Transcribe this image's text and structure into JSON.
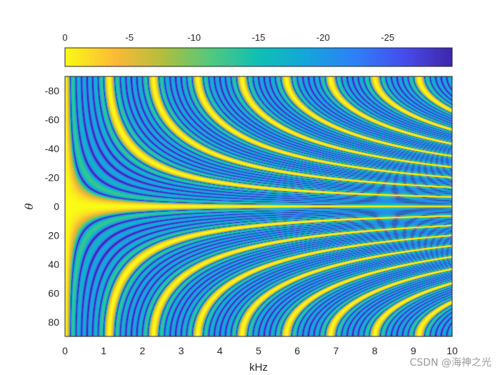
{
  "chart_data": {
    "type": "heatmap",
    "title": "",
    "xlabel": "kHz",
    "ylabel": "θ",
    "x_range": [
      0,
      10
    ],
    "y_range": [
      -90,
      90
    ],
    "y_direction": "top-to-bottom increasing",
    "x_ticks": [
      0,
      1,
      2,
      3,
      4,
      5,
      6,
      7,
      8,
      9,
      10
    ],
    "y_ticks": [
      -80,
      -60,
      -40,
      -20,
      0,
      20,
      40,
      60,
      80
    ],
    "colorbar": {
      "location": "top",
      "range": [
        -30,
        0
      ],
      "ticks": [
        0,
        -5,
        -10,
        -15,
        -20,
        -25
      ],
      "colormap": "parula"
    },
    "grid": false
  },
  "watermark": "CSDN @海神之光"
}
